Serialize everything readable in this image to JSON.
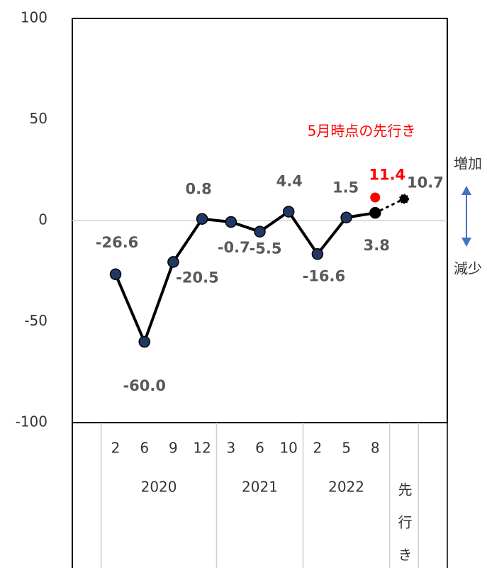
{
  "chart_data": {
    "type": "line",
    "categories": [
      null,
      "2",
      "6",
      "9",
      "12",
      "3",
      "6",
      "10",
      "2",
      "5",
      "8",
      "先行き",
      null
    ],
    "groups": [
      {
        "label": "2020",
        "start": 1,
        "count": 4
      },
      {
        "label": "2021",
        "start": 5,
        "count": 3
      },
      {
        "label": "2022",
        "start": 8,
        "count": 3
      }
    ],
    "series": [
      {
        "color": "#203864",
        "style": "solid",
        "values": [
          null,
          -26.6,
          -60.0,
          -20.5,
          0.8,
          -0.7,
          -5.5,
          4.4,
          -16.6,
          1.5,
          3.8,
          null,
          null
        ],
        "value_labels": [
          null,
          "-26.6",
          "-60.0",
          "-20.5",
          "0.8",
          "-0.7",
          "-5.5",
          "4.4",
          "-16.6",
          "1.5",
          "3.8",
          null,
          null
        ]
      },
      {
        "color": "#000000",
        "style": "dotted",
        "values": [
          null,
          null,
          null,
          null,
          null,
          null,
          null,
          null,
          null,
          null,
          null,
          10.7,
          null
        ]
      },
      {
        "color": "#ff0000",
        "style": "point",
        "values": [
          null,
          null,
          null,
          null,
          null,
          null,
          null,
          null,
          null,
          null,
          11.4,
          null,
          null
        ]
      }
    ],
    "annotation": "5月時点の先行き",
    "increase_label": "増加",
    "decrease_label": "減少",
    "ylim": [
      -100,
      100
    ],
    "yticks": [
      -100,
      -50,
      0,
      50,
      100
    ]
  }
}
